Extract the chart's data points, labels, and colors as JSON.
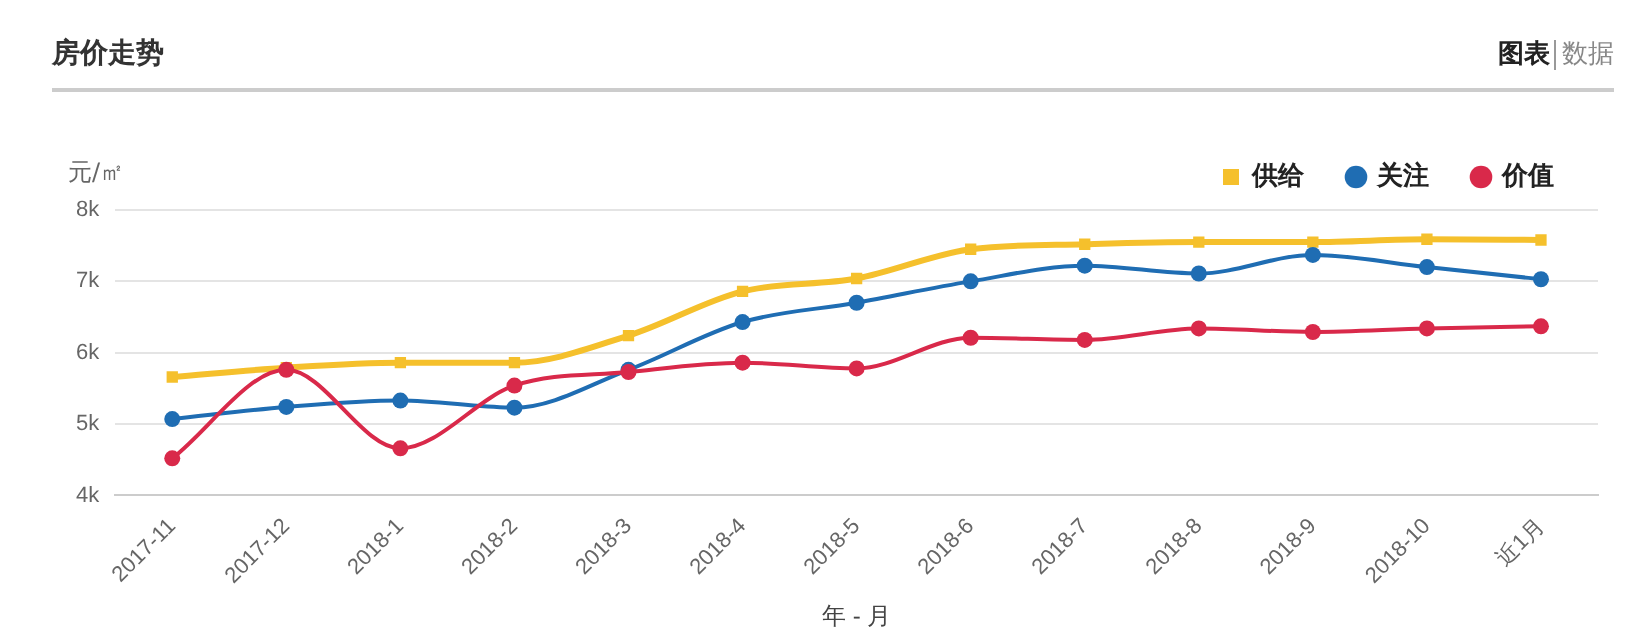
{
  "chart_data": {
    "type": "line",
    "title": "房价走势",
    "xlabel": "年 - 月",
    "ylabel": "元/㎡",
    "annotations": [
      "图表",
      "数据"
    ],
    "categories": [
      "2017-11",
      "2017-12",
      "2018-1",
      "2018-2",
      "2018-3",
      "2018-4",
      "2018-5",
      "2018-6",
      "2018-7",
      "2018-8",
      "2018-9",
      "2018-10",
      "近1月"
    ],
    "series": [
      {
        "name": "供给",
        "color": "#f5c02c",
        "marker": "square",
        "values": [
          5660,
          5790,
          5860,
          5860,
          6240,
          6860,
          7040,
          7450,
          7520,
          7550,
          7550,
          7590,
          7580
        ]
      },
      {
        "name": "关注",
        "color": "#1f6db3",
        "marker": "circle",
        "values": [
          5070,
          5240,
          5330,
          5230,
          5760,
          6430,
          6700,
          7000,
          7220,
          7110,
          7370,
          7200,
          7030
        ]
      },
      {
        "name": "价值",
        "color": "#d9294a",
        "marker": "circle",
        "values": [
          4520,
          5760,
          4660,
          5540,
          5730,
          5860,
          5780,
          6210,
          6180,
          6340,
          6290,
          6340,
          6370
        ]
      }
    ],
    "ylim": [
      4000,
      8000
    ],
    "yticks": [
      {
        "value": 4000,
        "label": "4k"
      },
      {
        "value": 5000,
        "label": "5k"
      },
      {
        "value": 6000,
        "label": "6k"
      },
      {
        "value": 7000,
        "label": "7k"
      },
      {
        "value": 8000,
        "label": "8k"
      }
    ],
    "grid": "y",
    "legend": "top right",
    "line_style": "solid"
  }
}
